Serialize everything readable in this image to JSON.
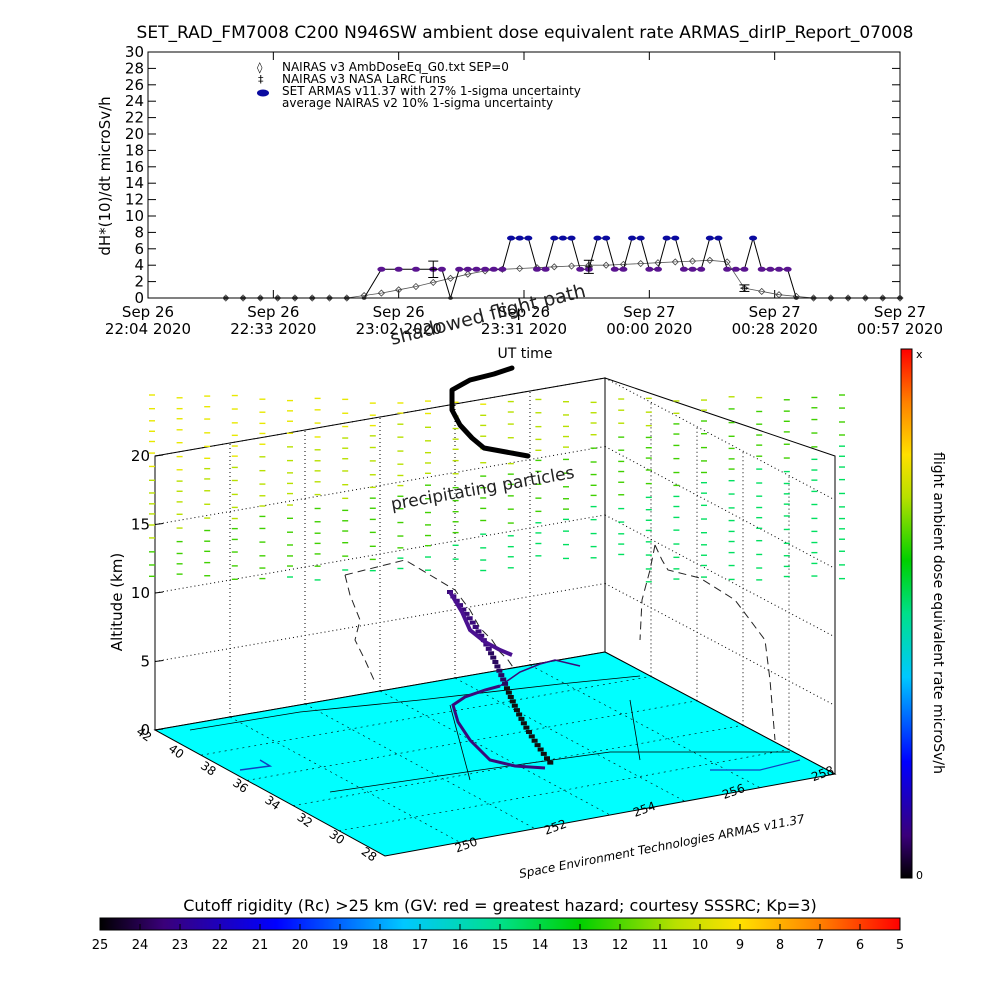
{
  "chart_data": [
    {
      "type": "line",
      "title": "SET_RAD_FM7008   C200 N946SW ambient dose equivalent rate ARMAS_dirIP_Report_07008",
      "ylabel": "dH*(10)/dt microSv/h",
      "xlabel": "UT time",
      "ylim": [
        0,
        30
      ],
      "yticks": [
        0,
        2,
        4,
        6,
        8,
        10,
        12,
        14,
        16,
        18,
        20,
        22,
        24,
        26,
        28,
        30
      ],
      "xticks": [
        {
          "line1": "Sep 26",
          "line2": "22:04 2020"
        },
        {
          "line1": "Sep 26",
          "line2": "22:33 2020"
        },
        {
          "line1": "Sep 26",
          "line2": "23:02 2020"
        },
        {
          "line1": "Sep 26",
          "line2": "23:31 2020"
        },
        {
          "line1": "Sep 27",
          "line2": "00:00 2020"
        },
        {
          "line1": "Sep 27",
          "line2": "00:28 2020"
        },
        {
          "line1": "Sep 27",
          "line2": "00:57 2020"
        }
      ],
      "legend_position": "top-left",
      "legend": [
        "NAIRAS v3 AmbDoseEq_G0.txt SEP=0",
        "NAIRAS v3 NASA LaRC runs",
        "SET ARMAS v11.37 with 27% 1-sigma uncertainty",
        "average NAIRAS v2 10% 1-sigma uncertainty"
      ],
      "annotations": [
        "shadowed flight path"
      ],
      "series": [
        {
          "name": "NAIRAS v3 AmbDoseEq_G0.txt SEP=0",
          "x_minutes_from_first_tick": [
            18,
            22,
            26,
            30,
            34,
            38,
            42,
            46,
            50,
            54,
            58,
            62,
            66,
            70,
            74,
            78,
            82,
            86,
            90,
            94,
            98,
            102,
            106,
            110,
            114,
            118,
            122,
            126,
            130,
            134,
            138,
            142,
            146,
            150,
            154,
            158,
            162,
            166,
            170,
            174
          ],
          "values": [
            0,
            0,
            0,
            0,
            0,
            0,
            0,
            0,
            0.3,
            0.6,
            1.0,
            1.4,
            1.9,
            2.4,
            2.9,
            3.3,
            3.5,
            3.6,
            3.7,
            3.8,
            3.9,
            4.0,
            4.0,
            4.1,
            4.2,
            4.3,
            4.4,
            4.5,
            4.6,
            4.4,
            1.2,
            0.8,
            0.4,
            0.2,
            0,
            0,
            0,
            0,
            0,
            0
          ]
        },
        {
          "name": "SET ARMAS v11.37 with 27% 1-sigma uncertainty",
          "x_minutes_from_first_tick": [
            18,
            22,
            26,
            30,
            34,
            38,
            42,
            46,
            50,
            54,
            58,
            62,
            66,
            68,
            70,
            72,
            74,
            76,
            78,
            80,
            82,
            84,
            86,
            88,
            90,
            92,
            94,
            96,
            98,
            100,
            102,
            104,
            106,
            108,
            110,
            112,
            114,
            116,
            118,
            120,
            122,
            124,
            126,
            128,
            130,
            132,
            134,
            136,
            138,
            140,
            142,
            144,
            146,
            148,
            150,
            154,
            158,
            162,
            166,
            170,
            174
          ],
          "values": [
            0,
            0,
            0,
            0,
            0,
            0,
            0,
            0,
            0,
            3.5,
            3.5,
            3.5,
            3.5,
            3.5,
            0,
            3.5,
            3.5,
            3.5,
            3.5,
            3.5,
            3.5,
            7.3,
            7.3,
            7.3,
            3.5,
            3.5,
            7.3,
            7.3,
            7.3,
            3.5,
            3.5,
            7.3,
            7.3,
            3.5,
            3.5,
            7.3,
            7.3,
            3.5,
            3.5,
            7.3,
            7.3,
            3.5,
            3.5,
            3.5,
            7.3,
            7.3,
            3.5,
            3.5,
            3.5,
            7.3,
            3.5,
            3.5,
            3.5,
            3.5,
            0,
            0,
            0,
            0,
            0,
            0,
            0
          ]
        },
        {
          "name": "NAIRAS v3 NASA LaRC runs",
          "points": [
            {
              "x_minutes_from_first_tick": 66,
              "value": 3.5,
              "err": 1.0
            },
            {
              "x_minutes_from_first_tick": 102,
              "value": 3.8,
              "err": 0.8
            },
            {
              "x_minutes_from_first_tick": 138,
              "value": 1.2,
              "err": 0.4
            }
          ]
        }
      ]
    },
    {
      "type": "scatter",
      "zlabel": "Altitude (km)",
      "zticks": [
        "0",
        "5",
        "10",
        "15",
        "20"
      ],
      "lat_ticks": [
        "42",
        "40",
        "38",
        "36",
        "34",
        "32",
        "30",
        "28"
      ],
      "lon_ticks": [
        "250",
        "252",
        "254",
        "256",
        "258"
      ],
      "credit": "Space Environment Technologies ARMAS v11.37",
      "annotations": [
        "precipitating particles"
      ],
      "colorbar": {
        "label": "flight ambient dose equivalent rate microSv/h",
        "top": "x",
        "bottom": "0"
      }
    }
  ],
  "rigidity_bar": {
    "title": "Cutoff rigidity (Rc) >25 km (GV: red = greatest hazard; courtesy SSSRC; Kp=3)",
    "ticks": [
      "25",
      "24",
      "23",
      "22",
      "21",
      "20",
      "19",
      "18",
      "17",
      "16",
      "15",
      "14",
      "13",
      "12",
      "11",
      "10",
      "9",
      "8",
      "7",
      "6",
      "5"
    ]
  },
  "colors": {
    "armas": "#0a0aa0",
    "armas_fill": "#5a1490",
    "nairas": "#555555",
    "ground": "#00ffff",
    "colorbar_top": "#ff0000",
    "colorbar_bottom": "#000000"
  }
}
